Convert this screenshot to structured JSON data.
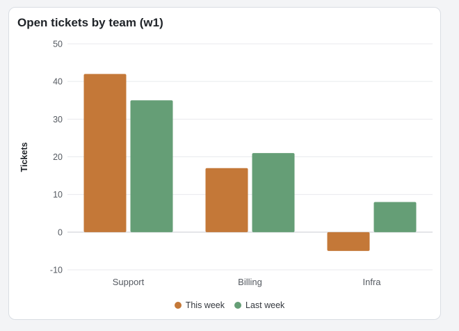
{
  "chart_data": {
    "type": "bar",
    "title": "Open tickets by team (w1)",
    "ylabel": "Tickets",
    "xlabel": "",
    "categories": [
      "Support",
      "Billing",
      "Infra"
    ],
    "series": [
      {
        "name": "This week",
        "values": [
          42,
          17,
          -5
        ],
        "color": "#c47838"
      },
      {
        "name": "Last week",
        "values": [
          35,
          21,
          8
        ],
        "color": "#659e76"
      }
    ],
    "ylim": [
      -10,
      50
    ],
    "yticks": [
      -10,
      0,
      10,
      20,
      30,
      40,
      50
    ],
    "grid": true,
    "legend_position": "bottom-center"
  }
}
